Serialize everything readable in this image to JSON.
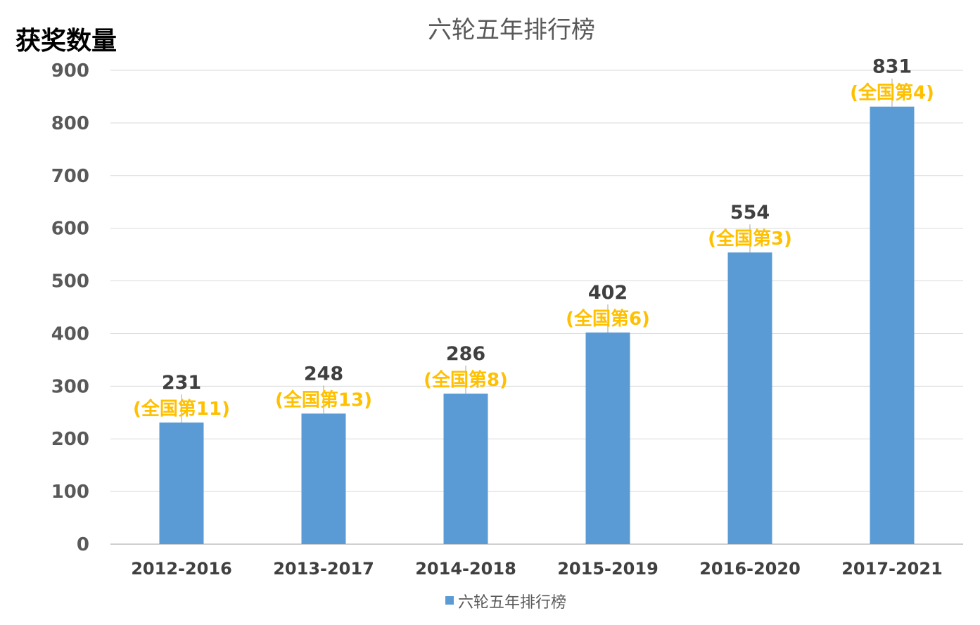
{
  "chart_data": {
    "type": "bar",
    "title": "六轮五年排行榜",
    "ylabel": "获奖数量",
    "xlabel": "",
    "categories": [
      "2012-2016",
      "2013-2017",
      "2014-2018",
      "2015-2019",
      "2016-2020",
      "2017-2021"
    ],
    "series": [
      {
        "name": "六轮五年排行榜",
        "values": [
          231,
          248,
          286,
          402,
          554,
          831
        ],
        "color": "#5B9BD5"
      }
    ],
    "annotations": [
      "(全国第11)",
      "(全国第13)",
      "(全国第8)",
      "(全国第6)",
      "(全国第3)",
      "(全国第4)"
    ],
    "annotation_color": "#FFC000",
    "ylim": [
      0,
      900
    ],
    "yticks": [
      0,
      100,
      200,
      300,
      400,
      500,
      600,
      700,
      800,
      900
    ],
    "grid": true,
    "legend": "bottom"
  }
}
